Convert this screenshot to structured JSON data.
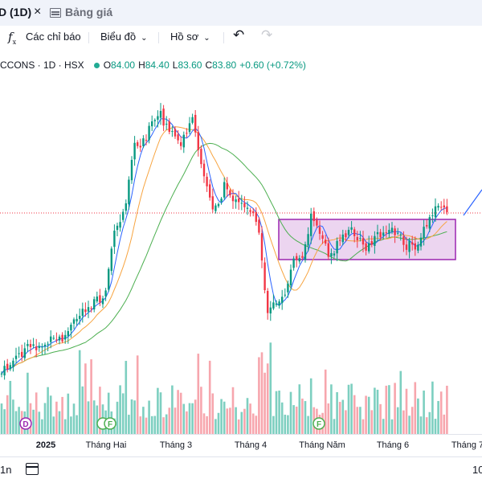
{
  "tabs": [
    {
      "label": "D (1D)",
      "close": "×"
    },
    {
      "label": "Bảng giá",
      "icon": "table-icon"
    }
  ],
  "toolbar": {
    "indicators_label": "Các chỉ báo",
    "chart_type_label": "Biểu đồ",
    "profile_label": "Hồ sơ"
  },
  "symbol": {
    "title": "CCONS · 1D · HSX",
    "status_color": "#22ab94",
    "o_label": "O",
    "o_value": "84.00",
    "h_label": "H",
    "h_value": "84.40",
    "l_label": "L",
    "l_value": "83.60",
    "c_label": "C",
    "c_value": "83.80",
    "change": "+0.60 (+0.72%)"
  },
  "colors": {
    "up": "#089981",
    "down": "#f23645",
    "vol_up": "#7dcfc0",
    "vol_down": "#f7a6ad",
    "ma_fast": "#2962ff",
    "ma_mid": "#f7a440",
    "ma_slow": "#4caf50",
    "box": "#9c27b0"
  },
  "markers": [
    {
      "type": "dividend",
      "label": "D"
    },
    {
      "type": "financial",
      "label": "F"
    },
    {
      "type": "financial",
      "label": "F"
    }
  ],
  "x_axis": [
    "2025",
    "Tháng Hai",
    "Tháng 3",
    "Tháng 4",
    "Tháng Năm",
    "Tháng 6",
    "Tháng 7"
  ],
  "bottom": {
    "left": "1n",
    "right": "10"
  }
}
